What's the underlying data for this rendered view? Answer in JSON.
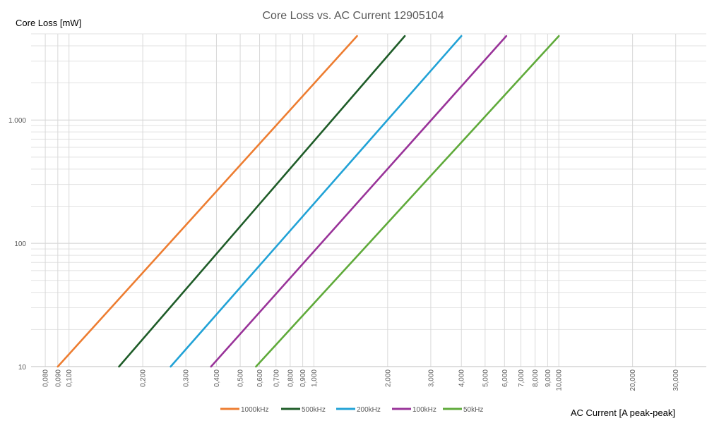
{
  "chart_data": {
    "type": "line",
    "title": "Core Loss vs. AC Current 12905104",
    "xlabel": "AC Current [A peak-peak]",
    "ylabel": "Core Loss [mW]",
    "xscale": "log",
    "yscale": "log",
    "xlim": [
      0.07,
      40
    ],
    "ylim": [
      10,
      5000
    ],
    "x_ticks": [
      0.08,
      0.09,
      0.1,
      0.2,
      0.3,
      0.4,
      0.5,
      0.6,
      0.7,
      0.8,
      0.9,
      1,
      2,
      3,
      4,
      5,
      6,
      7,
      8,
      9,
      10,
      20,
      30
    ],
    "x_tick_labels": [
      "0,080",
      "0,090",
      "0,100",
      "0,200",
      "0,300",
      "0,400",
      "0,500",
      "0,600",
      "0,700",
      "0,800",
      "0,900",
      "1,000",
      "2,000",
      "3,000",
      "4,000",
      "5,000",
      "6,000",
      "7,000",
      "8,000",
      "9,000",
      "10,000",
      "20,000",
      "30,000"
    ],
    "y_ticks": [
      10,
      100,
      1000
    ],
    "y_tick_labels": [
      "10",
      "100",
      "1.000"
    ],
    "grid": true,
    "legend_position": "bottom",
    "series": [
      {
        "name": "1000kHz",
        "color": "#ED7D31",
        "x": [
          0.09,
          1.5
        ],
        "y": [
          10,
          4800
        ]
      },
      {
        "name": "500kHz",
        "color": "#1E5C28",
        "x": [
          0.16,
          2.35
        ],
        "y": [
          10,
          4800
        ]
      },
      {
        "name": "200kHz",
        "color": "#21A2D6",
        "x": [
          0.26,
          4.0
        ],
        "y": [
          10,
          4800
        ]
      },
      {
        "name": "100kHz",
        "color": "#993399",
        "x": [
          0.38,
          6.1
        ],
        "y": [
          10,
          4800
        ]
      },
      {
        "name": "50kHz",
        "color": "#5FAA3A",
        "x": [
          0.58,
          10.0
        ],
        "y": [
          10,
          4800
        ]
      }
    ]
  }
}
